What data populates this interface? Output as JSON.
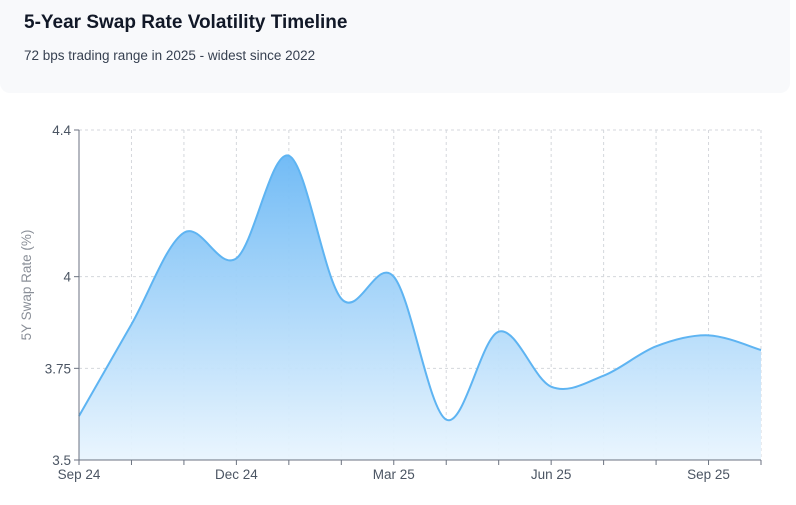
{
  "header": {
    "title": "5-Year Swap Rate Volatility Timeline",
    "subtitle": "72 bps trading range in 2025 - widest since 2022"
  },
  "chart_data": {
    "type": "area",
    "title": "5-Year Swap Rate Volatility Timeline",
    "subtitle": "72 bps trading range in 2025 - widest since 2022",
    "ylabel": "5Y Swap Rate (%)",
    "xlabel": "",
    "ylim": [
      3.5,
      4.4
    ],
    "y_ticks": [
      "3.5",
      "3.75",
      "4",
      "4.4"
    ],
    "x_ticks": [
      "Sep 24",
      "Dec 24",
      "Mar 25",
      "Jun 25",
      "Sep 25"
    ],
    "grid": true,
    "color": "#5eb4f2",
    "series": [
      {
        "x": [
          "Sep 24",
          "Oct 24",
          "Nov 24",
          "Dec 24",
          "Jan 25",
          "Feb 25",
          "Mar 25",
          "Apr 25",
          "May 25",
          "Jun 25",
          "Jul 25",
          "Aug 25",
          "Sep 25",
          "Oct 25"
        ],
        "values": [
          3.62,
          3.87,
          4.12,
          4.05,
          4.33,
          3.94,
          4.0,
          3.61,
          3.85,
          3.7,
          3.73,
          3.81,
          3.84,
          3.8
        ]
      }
    ]
  }
}
